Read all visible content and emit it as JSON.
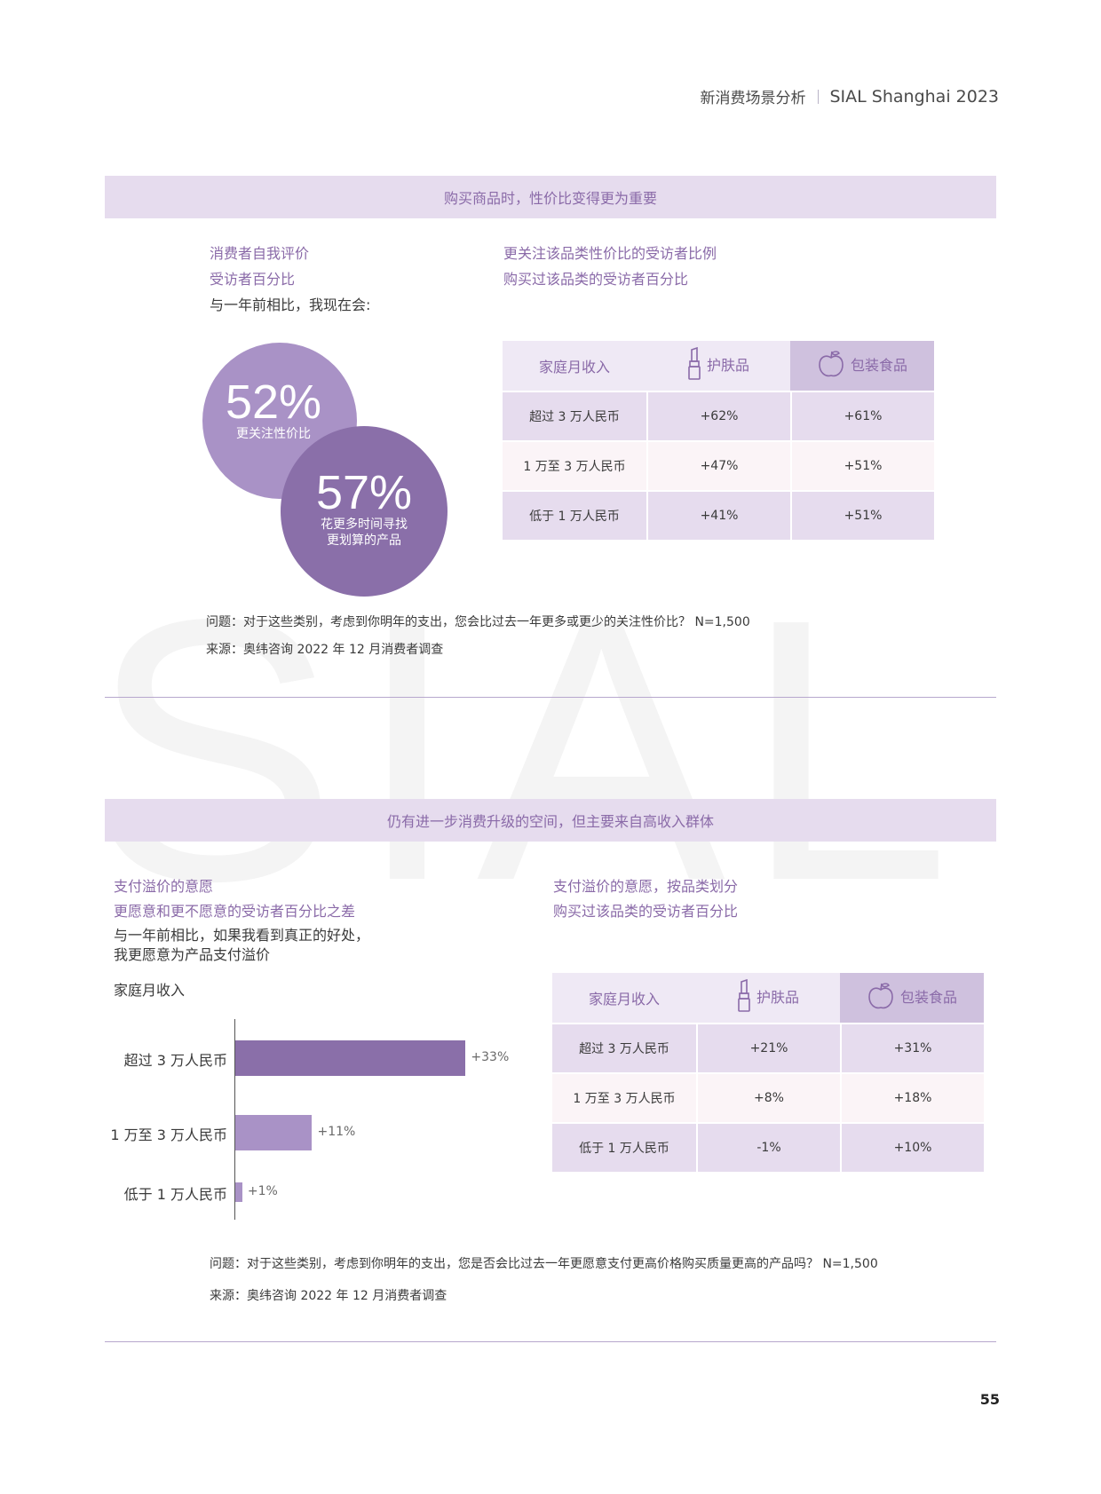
{
  "header": {
    "section": "新消费场景分析",
    "brand": "SIAL Shanghai 2023"
  },
  "section1": {
    "band_title": "购买商品时，性价比变得更为重要",
    "left_label": {
      "line1": "消费者自我评价",
      "line2": "受访者百分比",
      "line3": "与一年前相比，我现在会:"
    },
    "right_label": {
      "line1": "更关注该品类性价比的受访者比例",
      "line2": "购买过该品类的受访者百分比"
    },
    "bubbles": [
      {
        "pct": "52%",
        "label": "更关注性价比"
      },
      {
        "pct": "57%",
        "label1": "花更多时间寻找",
        "label2": "更划算的产品"
      }
    ],
    "table": {
      "headers": [
        "家庭月收入",
        "护肤品",
        "包装食品"
      ],
      "rows": [
        [
          "超过 3 万人民币",
          "+62%",
          "+61%"
        ],
        [
          "1 万至 3 万人民币",
          "+47%",
          "+51%"
        ],
        [
          "低于 1 万人民币",
          "+41%",
          "+51%"
        ]
      ]
    },
    "question": "问题：对于这些类别，考虑到你明年的支出，您会比过去一年更多或更少的关注性价比？ N=1,500",
    "source": "来源：奥纬咨询 2022 年 12 月消费者调查"
  },
  "section2": {
    "band_title": "仍有进一步消费升级的空间，但主要来自高收入群体",
    "left_label": {
      "line1": "支付溢价的意愿",
      "line2": "更愿意和更不愿意的受访者百分比之差",
      "line3": "与一年前相比，如果我看到真正的好处，",
      "line4": "我更愿意为产品支付溢价"
    },
    "right_label": {
      "line1": "支付溢价的意愿，按品类划分",
      "line2": "购买过该品类的受访者百分比"
    },
    "chart_title": "家庭月收入",
    "table": {
      "headers": [
        "家庭月收入",
        "护肤品",
        "包装食品"
      ],
      "rows": [
        [
          "超过 3 万人民币",
          "+21%",
          "+31%"
        ],
        [
          "1 万至 3 万人民币",
          "+8%",
          "+18%"
        ],
        [
          "低于 1 万人民币",
          "-1%",
          "+10%"
        ]
      ]
    },
    "question": "问题：对于这些类别，考虑到你明年的支出，您是否会比过去一年更愿意支付更高价格购买质量更高的产品吗？ N=1,500",
    "source": "来源：奥纬咨询 2022 年 12 月消费者调查"
  },
  "chart_data": {
    "type": "bar",
    "orientation": "horizontal",
    "title": "家庭月收入",
    "categories": [
      "超过 3 万人民币",
      "1 万至 3 万人民币",
      "低于 1 万人民币"
    ],
    "values": [
      33,
      11,
      1
    ],
    "value_labels": [
      "+33%",
      "+11%",
      "+1%"
    ],
    "colors": [
      "#8a6fa9",
      "#a992c6",
      "#a992c6"
    ],
    "xlabel": "",
    "ylabel": "",
    "xlim": [
      0,
      36
    ],
    "grid": false
  },
  "page_number": "55",
  "watermark": "SIAL",
  "icons": {
    "skincare": "lipstick-icon",
    "food": "apple-icon"
  },
  "colors": {
    "accent": "#8a6aa8",
    "band": "#e6dcee",
    "bubble_light": "#a992c6",
    "bubble_dark": "#8a6fa9"
  }
}
